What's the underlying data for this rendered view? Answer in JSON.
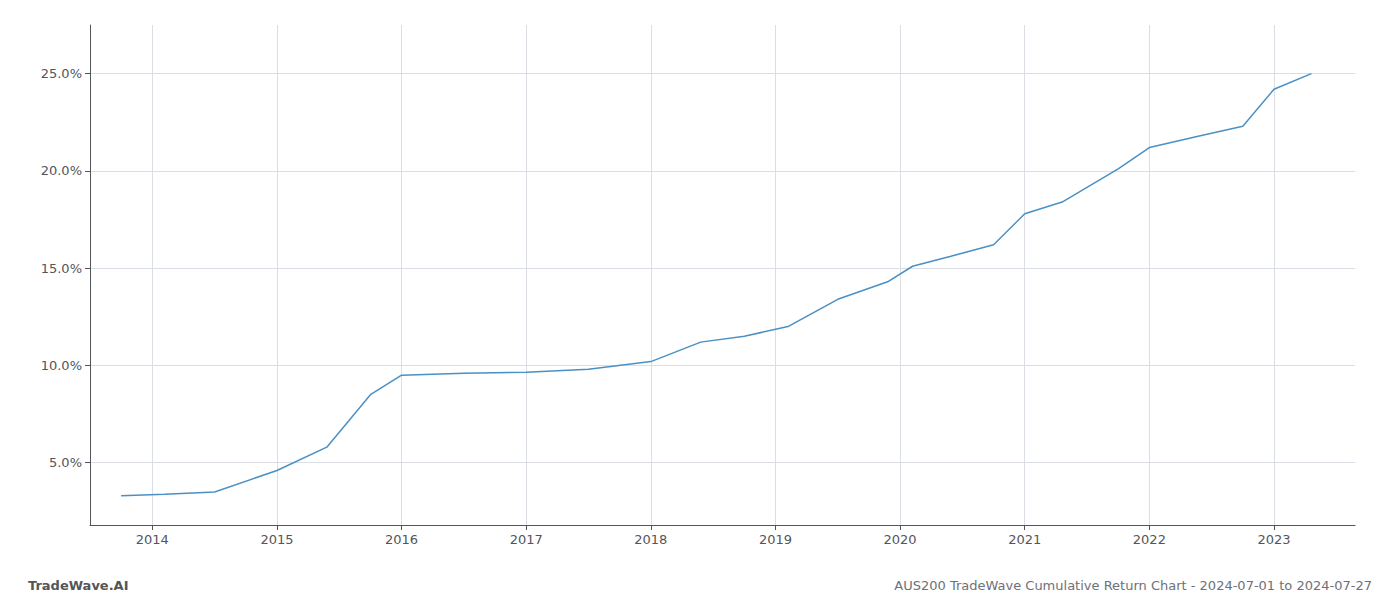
{
  "chart_data": {
    "type": "line",
    "x": [
      2013.75,
      2014.1,
      2014.5,
      2015.0,
      2015.4,
      2015.75,
      2016.0,
      2016.5,
      2017.0,
      2017.5,
      2018.0,
      2018.4,
      2018.75,
      2019.1,
      2019.5,
      2019.9,
      2020.1,
      2020.4,
      2020.75,
      2021.0,
      2021.3,
      2021.75,
      2022.0,
      2022.4,
      2022.75,
      2023.0,
      2023.3
    ],
    "values": [
      3.3,
      3.38,
      3.5,
      4.6,
      5.8,
      8.5,
      9.5,
      9.6,
      9.65,
      9.8,
      10.2,
      11.2,
      11.5,
      12.0,
      13.4,
      14.3,
      15.1,
      15.6,
      16.2,
      17.8,
      18.4,
      20.1,
      21.2,
      21.8,
      22.3,
      24.2,
      25.0
    ],
    "color": "#4a90c4",
    "xlim": [
      2013.5,
      2023.65
    ],
    "ylim": [
      1.8,
      27.5
    ],
    "xticks": [
      2014,
      2015,
      2016,
      2017,
      2018,
      2019,
      2020,
      2021,
      2022,
      2023
    ],
    "yticks": [
      {
        "value": 5.0,
        "label": "5.0%"
      },
      {
        "value": 10.0,
        "label": "10.0%"
      },
      {
        "value": 15.0,
        "label": "15.0%"
      },
      {
        "value": 20.0,
        "label": "20.0%"
      },
      {
        "value": 25.0,
        "label": "25.0%"
      }
    ],
    "grid": true,
    "annotations": [
      "TradeWave.AI",
      "AUS200 TradeWave Cumulative Return Chart - 2024-07-01 to 2024-07-27"
    ]
  }
}
